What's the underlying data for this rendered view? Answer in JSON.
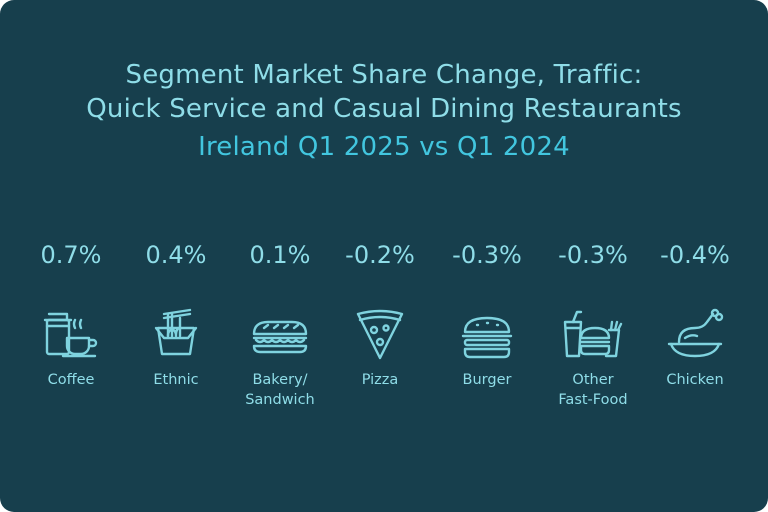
{
  "header": {
    "line1": "Segment Market Share Change, Traffic:",
    "line2": "Quick Service and Casual Dining Restaurants",
    "line3": "Ireland Q1 2025 vs Q1 2024"
  },
  "segments": [
    {
      "value": "0.7%",
      "label": "Coffee",
      "icon": "coffee-cup-icon"
    },
    {
      "value": "0.4%",
      "label": "Ethnic",
      "icon": "noodle-box-icon"
    },
    {
      "value": "0.1%",
      "label": "Bakery/\nSandwich",
      "icon": "sandwich-icon"
    },
    {
      "value": "-0.2%",
      "label": "Pizza",
      "icon": "pizza-slice-icon"
    },
    {
      "value": "-0.3%",
      "label": "Burger",
      "icon": "burger-icon"
    },
    {
      "value": "-0.3%",
      "label": "Other\nFast-Food",
      "icon": "fast-food-icon"
    },
    {
      "value": "-0.4%",
      "label": "Chicken",
      "icon": "chicken-leg-icon"
    }
  ],
  "colors": {
    "background": "#173f4d",
    "title": "#8fdde8",
    "subtitle": "#42c6df",
    "icon_stroke": "#7fd3df"
  }
}
